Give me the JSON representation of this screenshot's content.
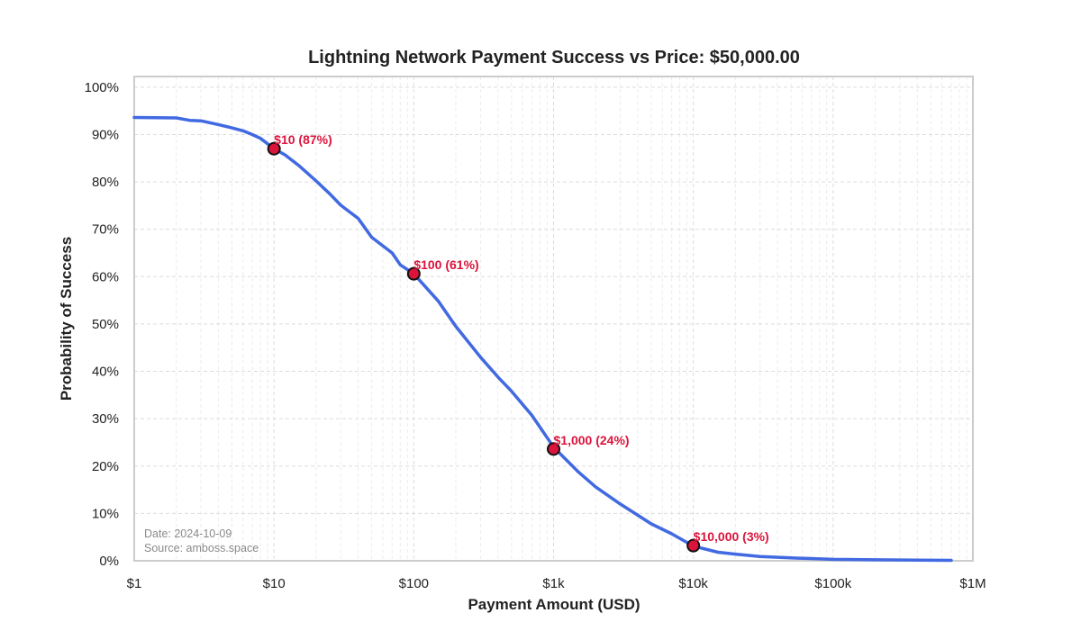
{
  "chart_data": {
    "type": "line",
    "title": "Lightning Network Payment Success vs Price: $50,000.00",
    "xlabel": "Payment Amount (USD)",
    "ylabel": "Probability of Success",
    "x_scale": "log",
    "xlim": [
      1,
      1000000
    ],
    "ylim": [
      0,
      100
    ],
    "x_ticks": [
      {
        "value": 1,
        "label": "$1"
      },
      {
        "value": 10,
        "label": "$10"
      },
      {
        "value": 100,
        "label": "$100"
      },
      {
        "value": 1000,
        "label": "$1k"
      },
      {
        "value": 10000,
        "label": "$10k"
      },
      {
        "value": 100000,
        "label": "$100k"
      },
      {
        "value": 1000000,
        "label": "$1M"
      }
    ],
    "y_ticks": [
      {
        "value": 0,
        "label": "0%"
      },
      {
        "value": 10,
        "label": "10%"
      },
      {
        "value": 20,
        "label": "20%"
      },
      {
        "value": 30,
        "label": "30%"
      },
      {
        "value": 40,
        "label": "40%"
      },
      {
        "value": 50,
        "label": "50%"
      },
      {
        "value": 60,
        "label": "60%"
      },
      {
        "value": 70,
        "label": "70%"
      },
      {
        "value": 80,
        "label": "80%"
      },
      {
        "value": 90,
        "label": "90%"
      },
      {
        "value": 100,
        "label": "100%"
      }
    ],
    "grid": true,
    "line_color": "#4169e1",
    "marker_color": "#dc143c",
    "series": [
      {
        "x": [
          1,
          2,
          2.5,
          3,
          4,
          5,
          6,
          7,
          8,
          10,
          12,
          15,
          20,
          25,
          30,
          40,
          50,
          70,
          80,
          100,
          150,
          200,
          300,
          400,
          500,
          700,
          1000,
          1500,
          2000,
          3000,
          5000,
          7000,
          10000,
          15000,
          20000,
          30000,
          50000,
          100000,
          200000,
          700000
        ],
        "y": [
          93.6,
          93.5,
          93.0,
          92.9,
          92.1,
          91.4,
          90.8,
          90.0,
          89.2,
          87.0,
          85.7,
          83.5,
          80.2,
          77.5,
          75.1,
          72.3,
          68.3,
          65.0,
          62.5,
          60.6,
          54.8,
          49.5,
          43.0,
          38.8,
          35.8,
          30.7,
          24.0,
          18.8,
          15.6,
          12.0,
          7.8,
          5.7,
          3.1,
          1.8,
          1.4,
          0.9,
          0.6,
          0.3,
          0.2,
          0.1
        ]
      }
    ],
    "markers": [
      {
        "x": 10,
        "y": 87,
        "label": "$10 (87%)"
      },
      {
        "x": 100,
        "y": 60.6,
        "label": "$100 (61%)"
      },
      {
        "x": 1000,
        "y": 23.6,
        "label": "$1,000 (24%)"
      },
      {
        "x": 10000,
        "y": 3.2,
        "label": "$10,000 (3%)"
      }
    ],
    "annotation": {
      "date": "Date: 2024-10-09",
      "source": "Source: amboss.space"
    }
  }
}
